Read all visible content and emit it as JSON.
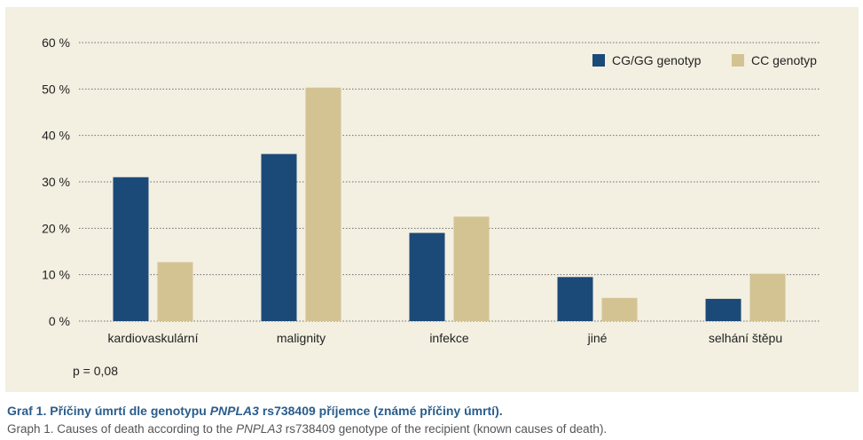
{
  "chart_data": {
    "type": "bar",
    "categories": [
      "kardiovaskulární",
      "malignity",
      "infekce",
      "jiné",
      "selhání štěpu"
    ],
    "series": [
      {
        "name": "CG/GG genotyp",
        "values": [
          31,
          36,
          19,
          9.5,
          4.8
        ],
        "color": "#1b4a78"
      },
      {
        "name": "CC genotyp",
        "values": [
          12.7,
          50.3,
          22.5,
          5,
          10.2
        ],
        "color": "#d3c393"
      }
    ],
    "yticks": [
      "0 %",
      "10 %",
      "20 %",
      "30 %",
      "40 %",
      "50 %",
      "60 %"
    ],
    "ylim": [
      0,
      60
    ],
    "grid": true,
    "legend": "top-right"
  },
  "note": "p = 0,08",
  "caption_cz": {
    "prefix": "Graf 1. Příčiny úmrtí dle genotypu ",
    "gene": "PNPLA3",
    "suffix": " rs738409 příjemce (známé příčiny úmrtí)."
  },
  "caption_en": {
    "prefix": "Graph 1. Causes of death according to the ",
    "gene": "PNPLA3",
    "suffix": " rs738409 genotype of the recipient (known causes of death)."
  }
}
